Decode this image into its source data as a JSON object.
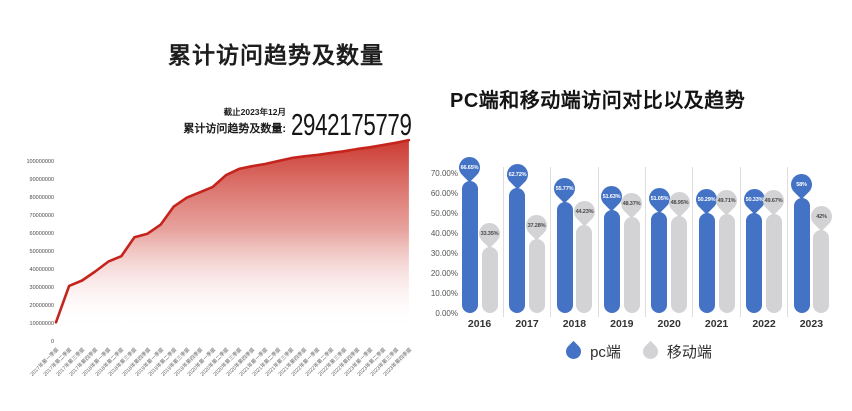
{
  "left_panel": {
    "title": "累计访问趋势及数量",
    "as_of": "截止2023年12月",
    "stat_label": "累计访问趋势及数量:",
    "total": "2942175779"
  },
  "right_panel": {
    "title": "PC端和移动端访问对比以及趋势"
  },
  "colors": {
    "red_line": "#c5241c",
    "red_fill_top": "#c7281f",
    "pc_blue": "#4472c4",
    "mobile_gray": "#d3d3d5",
    "gray_bubble_text": "#4a4a4a"
  },
  "chart_data": [
    {
      "type": "area",
      "title": "累计访问趋势及数量",
      "annotation": {
        "as_of": "截止2023年12月",
        "label": "累计访问趋势及数量:",
        "total": "2942175779"
      },
      "x": [
        "2017年第一季度",
        "2017年第二季度",
        "2017年第三季度",
        "2017年第四季度",
        "2018年第一季度",
        "2018年第二季度",
        "2018年第三季度",
        "2018年第四季度",
        "2019年第一季度",
        "2019年第二季度",
        "2019年第三季度",
        "2019年第四季度",
        "2020年第一季度",
        "2020年第二季度",
        "2020年第三季度",
        "2020年第四季度",
        "2021年第一季度",
        "2021年第二季度",
        "2021年第三季度",
        "2021年第四季度",
        "2022年第一季度",
        "2022年第二季度",
        "2022年第三季度",
        "2022年第四季度",
        "2023年第一季度",
        "2023年第二季度",
        "2023年第三季度",
        "2023年第四季度"
      ],
      "values": [
        10800000,
        31000000,
        34000000,
        39000000,
        44500000,
        47500000,
        58000000,
        60000000,
        65000000,
        75000000,
        80000000,
        83000000,
        86000000,
        92500000,
        96000000,
        97500000,
        98700000,
        100400000,
        102000000,
        103000000,
        103800000,
        104800000,
        105800000,
        107000000,
        108000000,
        109300000,
        110500000,
        112000000
      ],
      "y_ticks": [
        "0",
        "10000000",
        "20000000",
        "30000000",
        "40000000",
        "50000000",
        "60000000",
        "70000000",
        "80000000",
        "90000000",
        "100000000"
      ],
      "ylim": [
        0,
        100000000
      ],
      "grid": false,
      "line_color": "#c5241c",
      "fill_gradient_top": "#c7281f"
    },
    {
      "type": "bar",
      "title": "PC端和移动端访问对比以及趋势",
      "categories": [
        "2016",
        "2017",
        "2018",
        "2019",
        "2020",
        "2021",
        "2022",
        "2023"
      ],
      "series": [
        {
          "name": "pc端",
          "color": "#4472c4",
          "values": [
            66.65,
            62.72,
            55.77,
            51.63,
            51.05,
            50.29,
            50.33,
            58
          ],
          "labels": [
            "66.65%",
            "62.72%",
            "55.77%",
            "51.63%",
            "51.05%",
            "50.29%",
            "50.33%",
            "58%"
          ]
        },
        {
          "name": "移动端",
          "color": "#d3d3d5",
          "values": [
            33.35,
            37.28,
            44.23,
            48.37,
            48.95,
            49.71,
            49.67,
            42
          ],
          "labels": [
            "33.35%",
            "37.28%",
            "44.23%",
            "48.37%",
            "48.95%",
            "49.71%",
            "49.67%",
            "42%"
          ]
        }
      ],
      "y_ticks": [
        "0.00%",
        "10.00%",
        "20.00%",
        "30.00%",
        "40.00%",
        "50.00%",
        "60.00%",
        "70.00%"
      ],
      "ylim": [
        0,
        70
      ],
      "grid": false,
      "legend_position": "bottom",
      "legend": [
        "pc端",
        "移动端"
      ]
    }
  ]
}
